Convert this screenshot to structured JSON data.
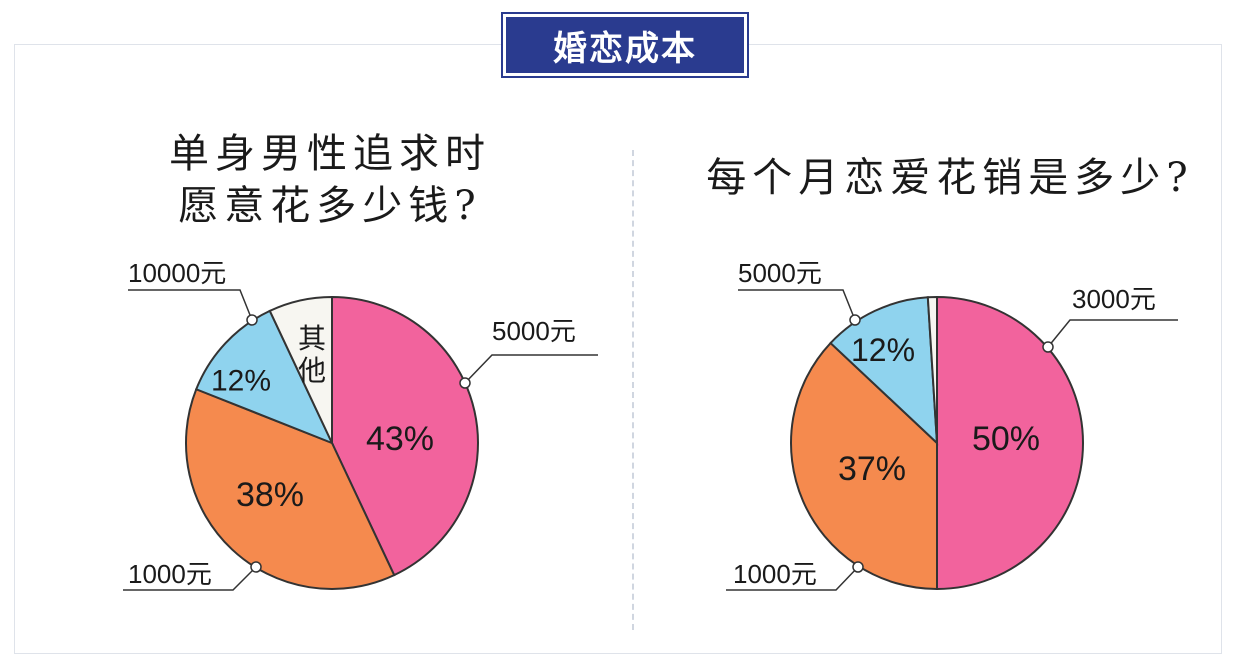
{
  "header": {
    "title": "婚恋成本"
  },
  "chart_data": [
    {
      "type": "pie",
      "title": "单身男性追求时\n愿意花多少钱?",
      "title_lines": [
        "单身男性追求时",
        "愿意花多少钱?"
      ],
      "slices": [
        {
          "label": "5000元",
          "value": 43,
          "display": "43%",
          "color": "#f2639d"
        },
        {
          "label": "1000元",
          "value": 38,
          "display": "38%",
          "color": "#f58a4e"
        },
        {
          "label": "10000元",
          "value": 12,
          "display": "12%",
          "color": "#8fd3ee"
        },
        {
          "label": "其他",
          "value": 7,
          "display": "其他",
          "color": "#f7f6f1"
        }
      ]
    },
    {
      "type": "pie",
      "title": "每个月恋爱花销是多少?",
      "title_lines": [
        "每个月恋爱花销是多少?"
      ],
      "slices": [
        {
          "label": "3000元",
          "value": 50,
          "display": "50%",
          "color": "#f2639d"
        },
        {
          "label": "1000元",
          "value": 37,
          "display": "37%",
          "color": "#f58a4e"
        },
        {
          "label": "5000元",
          "value": 12,
          "display": "12%",
          "color": "#8fd3ee"
        },
        {
          "label": "",
          "value": 1,
          "display": "",
          "color": "#f7f6f1"
        }
      ]
    }
  ]
}
